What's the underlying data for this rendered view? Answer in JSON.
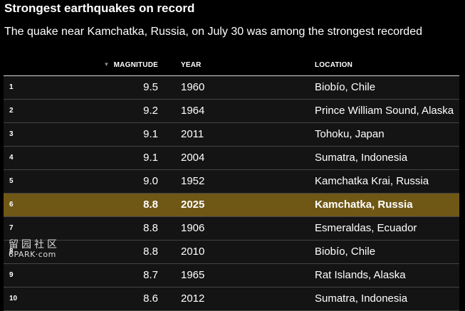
{
  "header": {
    "title": "Strongest earthquakes on record",
    "subtitle": "The quake near Kamchatka, Russia, on July 30 was among the strongest recorded"
  },
  "colors": {
    "background": "#000000",
    "row_background": "#141414",
    "highlight": "#6f5716",
    "text": "#ffffff"
  },
  "icons": {
    "sort": "sort-descending-icon"
  },
  "chart_data": {
    "type": "table",
    "title": "Strongest earthquakes on record",
    "subtitle": "The quake near Kamchatka, Russia, on July 30 was among the strongest recorded",
    "columns": [
      "",
      "MAGNITUDE",
      "YEAR",
      "LOCATION"
    ],
    "sorted_by": "MAGNITUDE",
    "sort_direction": "descending",
    "highlighted_rank": "6",
    "rows": [
      {
        "rank": "1",
        "magnitude": "9.5",
        "year": "1960",
        "location": "Biobío, Chile"
      },
      {
        "rank": "2",
        "magnitude": "9.2",
        "year": "1964",
        "location": "Prince William Sound, Alaska"
      },
      {
        "rank": "3",
        "magnitude": "9.1",
        "year": "2011",
        "location": "Tohoku, Japan"
      },
      {
        "rank": "4",
        "magnitude": "9.1",
        "year": "2004",
        "location": "Sumatra, Indonesia"
      },
      {
        "rank": "5",
        "magnitude": "9.0",
        "year": "1952",
        "location": "Kamchatka Krai, Russia"
      },
      {
        "rank": "6",
        "magnitude": "8.8",
        "year": "2025",
        "location": "Kamchatka, Russia"
      },
      {
        "rank": "7",
        "magnitude": "8.8",
        "year": "1906",
        "location": "Esmeraldas, Ecuador"
      },
      {
        "rank": "8",
        "magnitude": "8.8",
        "year": "2010",
        "location": "Biobío, Chile"
      },
      {
        "rank": "9",
        "magnitude": "8.7",
        "year": "1965",
        "location": "Rat Islands, Alaska"
      },
      {
        "rank": "10",
        "magnitude": "8.6",
        "year": "2012",
        "location": "Sumatra, Indonesia"
      }
    ]
  },
  "watermark": {
    "text_cn": "留园社区",
    "text_en": "6PARK·com"
  }
}
